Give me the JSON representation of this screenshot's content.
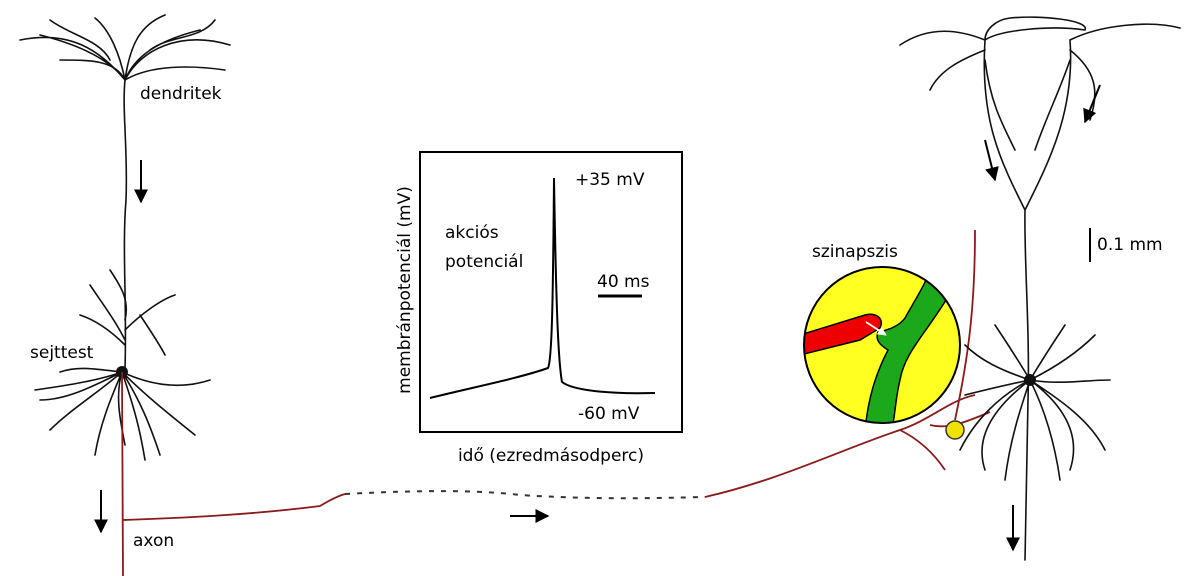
{
  "labels": {
    "dendrites": "dendritek",
    "soma": "sejttest",
    "axon": "axon",
    "synapse": "szinapszis",
    "scale": "0.1 mm"
  },
  "inset": {
    "y_label": "membránpotenciál (mV)",
    "x_label": "idő (ezredmásodperc)",
    "title_lines": [
      "akciós",
      "potenciál"
    ],
    "peak": "+35 mV",
    "rest": "-60 mV",
    "time_scale": "40 ms"
  }
}
